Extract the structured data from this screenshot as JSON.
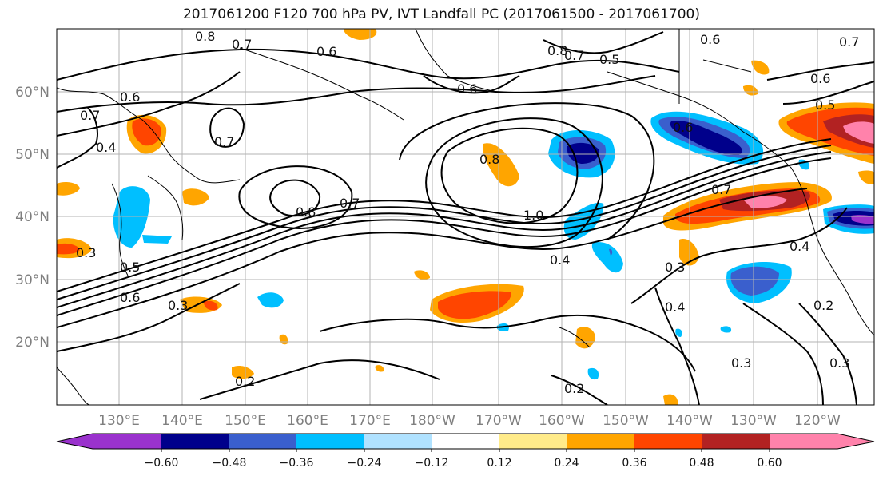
{
  "title": "2017061200 F120 700 hPa PV, IVT Landfall PC (2017061500 - 2017061700)",
  "lon_labels": [
    "130°E",
    "140°E",
    "150°E",
    "160°E",
    "170°E",
    "180°W",
    "170°W",
    "160°W",
    "150°W",
    "140°W",
    "130°W",
    "120°W"
  ],
  "lat_labels": [
    "60°N",
    "50°N",
    "40°N",
    "30°N",
    "20°N"
  ],
  "colorbar": {
    "ticks": [
      "−0.60",
      "−0.48",
      "−0.36",
      "−0.24",
      "−0.12",
      "0.12",
      "0.24",
      "0.36",
      "0.48",
      "0.60"
    ],
    "colors": [
      "#9a32cd",
      "#00008b",
      "#3a5fcd",
      "#00bfff",
      "#b0e2ff",
      "#ffffff",
      "#ffeb8a",
      "#ffa500",
      "#ff4500",
      "#b22222",
      "#ff82ab"
    ]
  },
  "contour_labels": [
    "0.8",
    "0.7",
    "0.6",
    "0.5",
    "0.7",
    "0.6",
    "0.8",
    "0.7",
    "0.6",
    "0.6",
    "0.5",
    "0.7",
    "0.6",
    "0.7",
    "0.4",
    "0.6",
    "0.8",
    "0.7",
    "0.8",
    "1.0",
    "0.7",
    "0.4",
    "0.4",
    "0.3",
    "0.5",
    "0.6",
    "0.3",
    "0.3",
    "0.4",
    "0.2",
    "0.2",
    "0.3",
    "0.2",
    "0.3"
  ]
}
